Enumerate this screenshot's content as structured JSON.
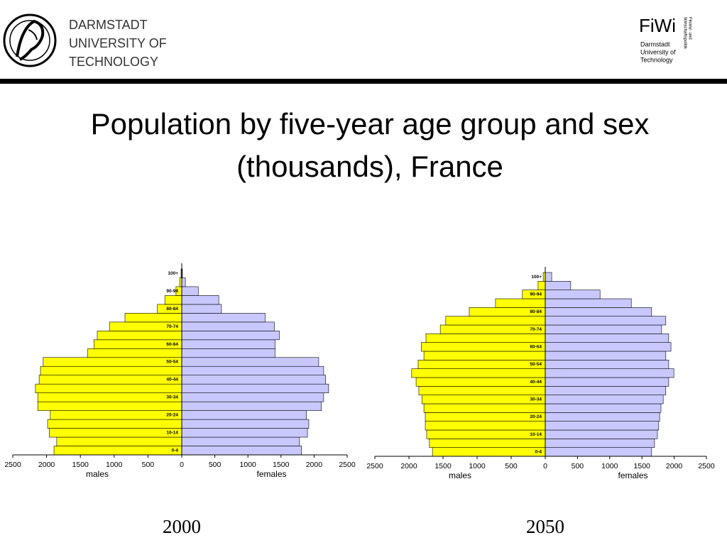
{
  "header": {
    "university": [
      "DARMSTADT",
      "UNIVERSITY OF",
      "TECHNOLOGY"
    ],
    "logo_text": "FiWi",
    "logo_sub": [
      "Darmstadt",
      "University of",
      "Technology"
    ],
    "logo_side": [
      "Finanz- und",
      "Wirtschaftspolitik"
    ]
  },
  "title": [
    "Population by five-year age group and sex",
    "(thousands), France"
  ],
  "chart_data": [
    {
      "type": "pyramid",
      "title": "2000",
      "categories": [
        "0-4",
        null,
        "10-14",
        null,
        "20-24",
        null,
        "30-34",
        null,
        "40-44",
        null,
        "50-54",
        null,
        "60-64",
        null,
        "70-74",
        null,
        "80-84",
        null,
        "90-94",
        null,
        "100+"
      ],
      "series": [
        {
          "name": "males",
          "color": "#ffff00",
          "values": [
            1890,
            1850,
            1960,
            1985,
            1945,
            2130,
            2130,
            2165,
            2110,
            2090,
            2050,
            1390,
            1300,
            1250,
            1070,
            840,
            360,
            250,
            85,
            30,
            10
          ]
        },
        {
          "name": "females",
          "color": "#c8c8ff",
          "values": [
            1810,
            1780,
            1900,
            1920,
            1885,
            2110,
            2145,
            2220,
            2175,
            2145,
            2070,
            1410,
            1410,
            1475,
            1400,
            1260,
            600,
            560,
            250,
            55,
            10
          ]
        }
      ],
      "xlim": [
        0,
        2500
      ],
      "xticks": [
        0,
        500,
        1000,
        1500,
        2000,
        2500
      ]
    },
    {
      "type": "pyramid",
      "title": "2050",
      "categories": [
        "0-4",
        null,
        "10-14",
        null,
        "20-24",
        null,
        "30-34",
        null,
        "40-44",
        null,
        "50-54",
        null,
        "60-64",
        null,
        "70-74",
        null,
        "80-84",
        null,
        "90-94",
        null,
        "100+"
      ],
      "series": [
        {
          "name": "males",
          "color": "#ffff00",
          "values": [
            1655,
            1700,
            1740,
            1760,
            1760,
            1780,
            1810,
            1855,
            1895,
            1960,
            1865,
            1780,
            1820,
            1750,
            1540,
            1460,
            1115,
            730,
            335,
            105,
            30
          ]
        },
        {
          "name": "females",
          "color": "#c8c8ff",
          "values": [
            1650,
            1695,
            1740,
            1760,
            1775,
            1795,
            1830,
            1870,
            1915,
            1995,
            1915,
            1870,
            1950,
            1915,
            1805,
            1870,
            1650,
            1335,
            850,
            395,
            100
          ]
        }
      ],
      "xlim": [
        0,
        2500
      ],
      "xticks": [
        0,
        500,
        1000,
        1500,
        2000,
        2500
      ]
    }
  ]
}
